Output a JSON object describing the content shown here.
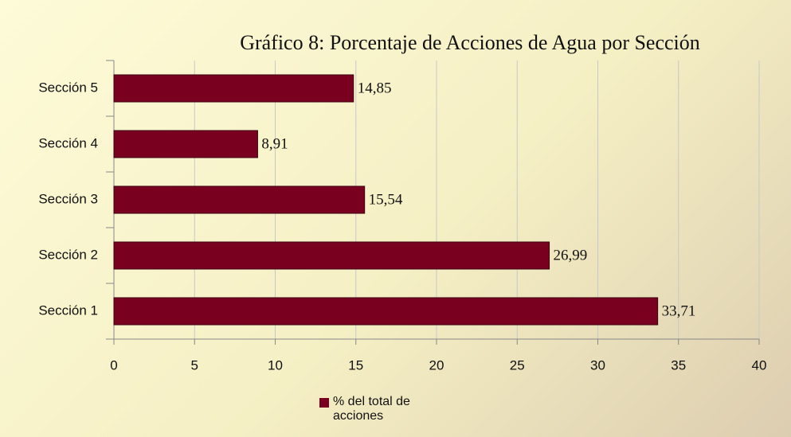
{
  "chart_data": {
    "type": "bar",
    "orientation": "horizontal",
    "title": "Gráfico 8: Porcentaje de Acciones de Agua por Sección",
    "categories": [
      "Sección 1",
      "Sección 2",
      "Sección 3",
      "Sección 4",
      "Sección 5"
    ],
    "series": [
      {
        "name": "% del total de acciones",
        "color": "#7a0020",
        "values": [
          33.71,
          26.99,
          15.54,
          8.91,
          14.85
        ],
        "value_labels": [
          "33,71",
          "26,99",
          "15,54",
          "8,91",
          "14,85"
        ]
      }
    ],
    "xlim": [
      0,
      40
    ],
    "xticks": [
      0,
      5,
      10,
      15,
      20,
      25,
      30,
      35,
      40
    ],
    "grid": true,
    "legend": "bottom"
  }
}
